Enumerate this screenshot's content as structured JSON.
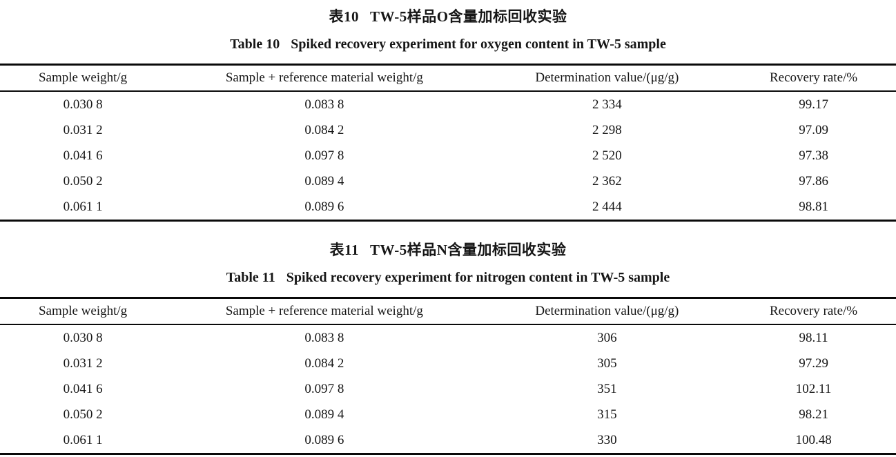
{
  "page": {
    "background": "#ffffff",
    "text_color": "#161616",
    "rule_color": "#0a0a0a"
  },
  "tables": [
    {
      "id": "table-10",
      "title_zh_label": "表10",
      "title_zh": "TW-5样品O含量加标回收实验",
      "title_en_label": "Table 10",
      "title_en": "Spiked recovery experiment for oxygen content in TW-5 sample",
      "columns": [
        "Sample weight/g",
        "Sample + reference material weight/g",
        "Determination value/(μg/g)",
        "Recovery rate/%"
      ],
      "rows": [
        [
          "0.030 8",
          "0.083 8",
          "2 334",
          "99.17"
        ],
        [
          "0.031 2",
          "0.084 2",
          "2 298",
          "97.09"
        ],
        [
          "0.041 6",
          "0.097 8",
          "2 520",
          "97.38"
        ],
        [
          "0.050 2",
          "0.089 4",
          "2 362",
          "97.86"
        ],
        [
          "0.061 1",
          "0.089 6",
          "2 444",
          "98.81"
        ]
      ]
    },
    {
      "id": "table-11",
      "title_zh_label": "表11",
      "title_zh": "TW-5样品N含量加标回收实验",
      "title_en_label": "Table 11",
      "title_en": "Spiked recovery experiment for nitrogen content in TW-5 sample",
      "columns": [
        "Sample weight/g",
        "Sample + reference material weight/g",
        "Determination value/(μg/g)",
        "Recovery rate/%"
      ],
      "rows": [
        [
          "0.030 8",
          "0.083 8",
          "306",
          "98.11"
        ],
        [
          "0.031 2",
          "0.084 2",
          "305",
          "97.29"
        ],
        [
          "0.041 6",
          "0.097 8",
          "351",
          "102.11"
        ],
        [
          "0.050 2",
          "0.089 4",
          "315",
          "98.21"
        ],
        [
          "0.061 1",
          "0.089 6",
          "330",
          "100.48"
        ]
      ]
    }
  ]
}
